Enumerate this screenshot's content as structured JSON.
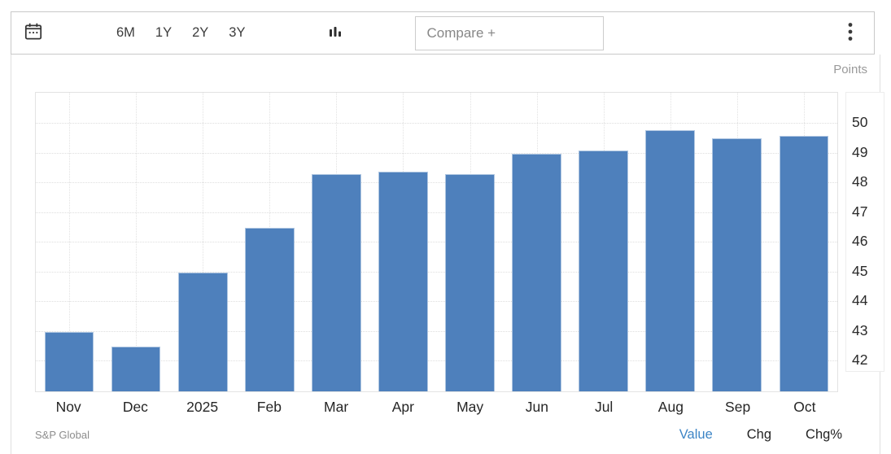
{
  "toolbar": {
    "ranges": [
      {
        "label": "6M"
      },
      {
        "label": "1Y"
      },
      {
        "label": "2Y"
      },
      {
        "label": "3Y"
      }
    ],
    "compare_label": "Compare +"
  },
  "chart": {
    "y_axis_title": "Points",
    "source": "S&P Global",
    "footer_links": [
      {
        "label": "Value",
        "active": true
      },
      {
        "label": "Chg",
        "active": false
      },
      {
        "label": "Chg%",
        "active": false
      }
    ]
  },
  "chart_data": {
    "type": "bar",
    "title": "",
    "categories": [
      "Nov",
      "Dec",
      "2025",
      "Feb",
      "Mar",
      "Apr",
      "May",
      "Jun",
      "Jul",
      "Aug",
      "Sep",
      "Oct"
    ],
    "values": [
      43.0,
      42.5,
      45.0,
      46.5,
      48.3,
      48.4,
      48.3,
      49.0,
      49.1,
      49.8,
      49.5,
      49.6
    ],
    "xlabel": "",
    "ylabel": "Points",
    "yticks": [
      42,
      43,
      44,
      45,
      46,
      47,
      48,
      49,
      50
    ],
    "ylim": [
      41,
      51.1
    ],
    "bar_color": "#4e80bc",
    "grid": true,
    "legend_position": "none"
  },
  "colors": {
    "bar": "#4e80bc",
    "accent_blue": "#3d85c6",
    "axis_text": "#2a2a2a",
    "muted_text": "#9a9a9a"
  }
}
